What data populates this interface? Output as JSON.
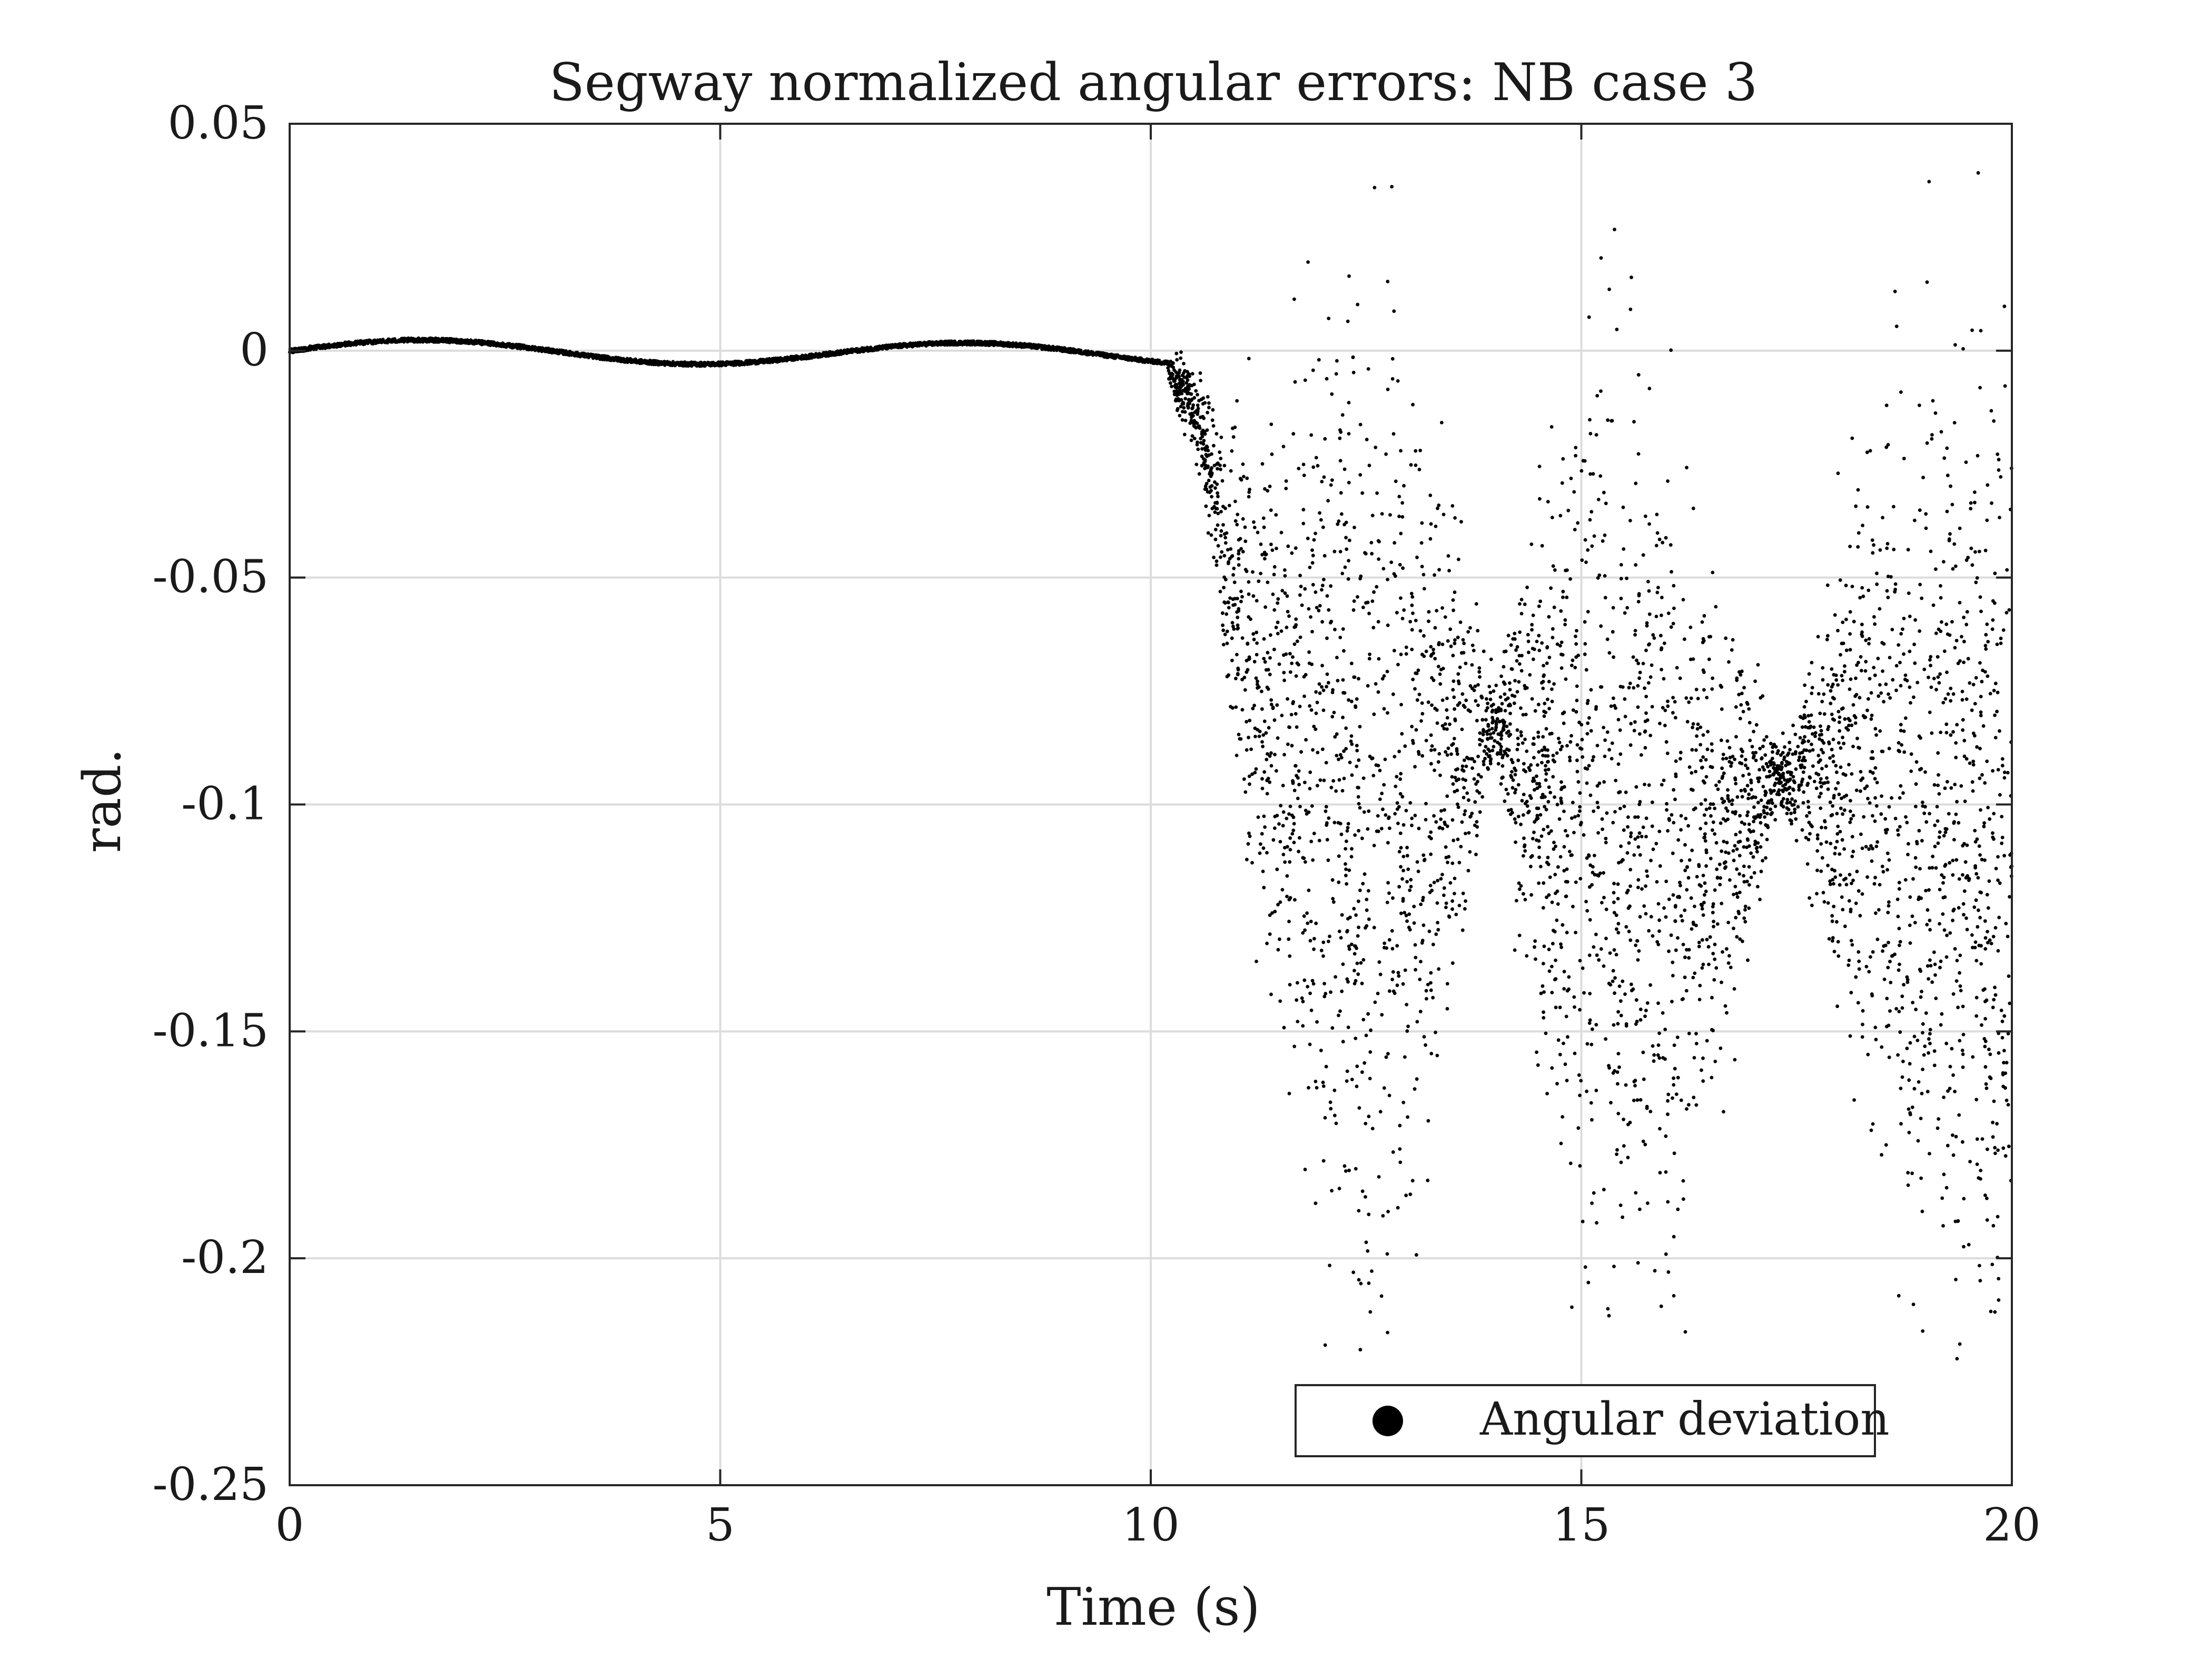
{
  "chart_data": {
    "type": "scatter",
    "title": "Segway normalized angular errors: NB case 3",
    "xlabel": "Time (s)",
    "ylabel": "rad.",
    "xlim": [
      0,
      20
    ],
    "ylim": [
      -0.25,
      0.05
    ],
    "x_ticks": [
      0,
      5,
      10,
      15,
      20
    ],
    "x_tick_labels": [
      "0",
      "5",
      "10",
      "15",
      "20"
    ],
    "y_ticks": [
      0.05,
      0,
      -0.05,
      -0.1,
      -0.15,
      -0.2,
      -0.25
    ],
    "y_tick_labels": [
      "0.05",
      "0",
      "-0.05",
      "-0.1",
      "-0.15",
      "-0.2",
      "-0.25"
    ],
    "grid": true,
    "legend_position": "bottom-right",
    "colors": {
      "marker": "#000000",
      "grid": "#dcdcdc",
      "axes": "#262626"
    },
    "series": [
      {
        "name": "Angular deviation",
        "marker": "dot",
        "description_points": {
          "smooth_part": {
            "x": [
              0,
              1,
              2,
              3,
              4,
              5,
              6,
              7,
              8,
              9,
              10
            ],
            "y": [
              0,
              0.0015,
              0.002,
              0.001,
              -0.0015,
              -0.003,
              -0.001,
              0.0015,
              0.002,
              0.0008,
              -0.001
            ]
          },
          "envelope": {
            "x": [
              10.2,
              10.5,
              10.8,
              11.0,
              11.5,
              12.0,
              12.5,
              13.0,
              13.5,
              14.0,
              14.5,
              15.0,
              15.5,
              16.0,
              16.5,
              17.0,
              17.3,
              17.8,
              18.3,
              18.8,
              19.3,
              20.0
            ],
            "center": [
              -0.004,
              -0.012,
              -0.035,
              -0.06,
              -0.08,
              -0.092,
              -0.1,
              -0.098,
              -0.09,
              -0.082,
              -0.092,
              -0.1,
              -0.105,
              -0.11,
              -0.105,
              -0.098,
              -0.094,
              -0.09,
              -0.095,
              -0.1,
              -0.105,
              -0.11
            ],
            "halfwidth": [
              0.003,
              0.008,
              0.018,
              0.035,
              0.06,
              0.085,
              0.095,
              0.08,
              0.045,
              0.006,
              0.05,
              0.08,
              0.09,
              0.075,
              0.05,
              0.025,
              0.004,
              0.03,
              0.06,
              0.08,
              0.09,
              0.095
            ]
          }
        }
      }
    ]
  }
}
